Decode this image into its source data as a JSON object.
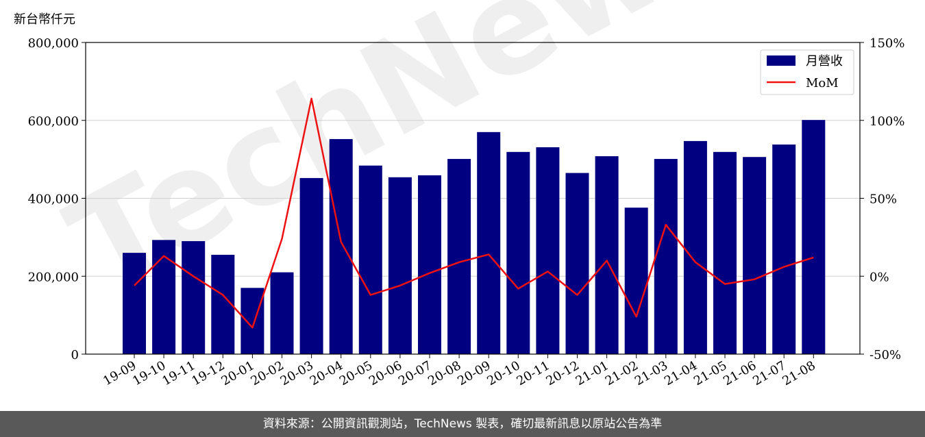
{
  "chart_data": {
    "type": "bar",
    "unit_label": "新台幣仟元",
    "categories": [
      "19-09",
      "19-10",
      "19-11",
      "19-12",
      "20-01",
      "20-02",
      "20-03",
      "20-04",
      "20-05",
      "20-06",
      "20-07",
      "20-08",
      "20-09",
      "20-10",
      "20-11",
      "20-12",
      "21-01",
      "21-02",
      "21-03",
      "21-04",
      "21-05",
      "21-06",
      "21-07",
      "21-08"
    ],
    "series": [
      {
        "name": "月營收",
        "type": "bar",
        "axis": "left",
        "color": "#000080",
        "values": [
          260000,
          293000,
          290000,
          255000,
          170000,
          210000,
          452000,
          552000,
          484000,
          454000,
          459000,
          501000,
          570000,
          519000,
          531000,
          465000,
          508000,
          376000,
          501000,
          547000,
          519000,
          506000,
          538000,
          601000
        ]
      },
      {
        "name": "MoM",
        "type": "line",
        "axis": "right",
        "color": "#ee1111",
        "values": [
          -6,
          13,
          0,
          -12,
          -33,
          24,
          114,
          22,
          -12,
          -6,
          2,
          9,
          14,
          -8,
          3,
          -12,
          10,
          -26,
          33,
          9,
          -5,
          -2,
          6,
          12
        ]
      }
    ],
    "left_axis": {
      "ylim": [
        0,
        800000
      ],
      "ticks": [
        "0",
        "200,000",
        "400,000",
        "600,000",
        "800,000"
      ],
      "tick_values": [
        0,
        200000,
        400000,
        600000,
        800000
      ]
    },
    "right_axis": {
      "ylim": [
        -50,
        150
      ],
      "ticks": [
        "-50%",
        "0%",
        "50%",
        "100%",
        "150%"
      ],
      "tick_values": [
        -50,
        0,
        50,
        100,
        150
      ]
    },
    "grid": true,
    "legend_position": "top-right"
  },
  "watermark": "TechNews",
  "footer_text": "資料來源：公開資訊觀測站，TechNews 製表，確切最新訊息以原站公告為準"
}
